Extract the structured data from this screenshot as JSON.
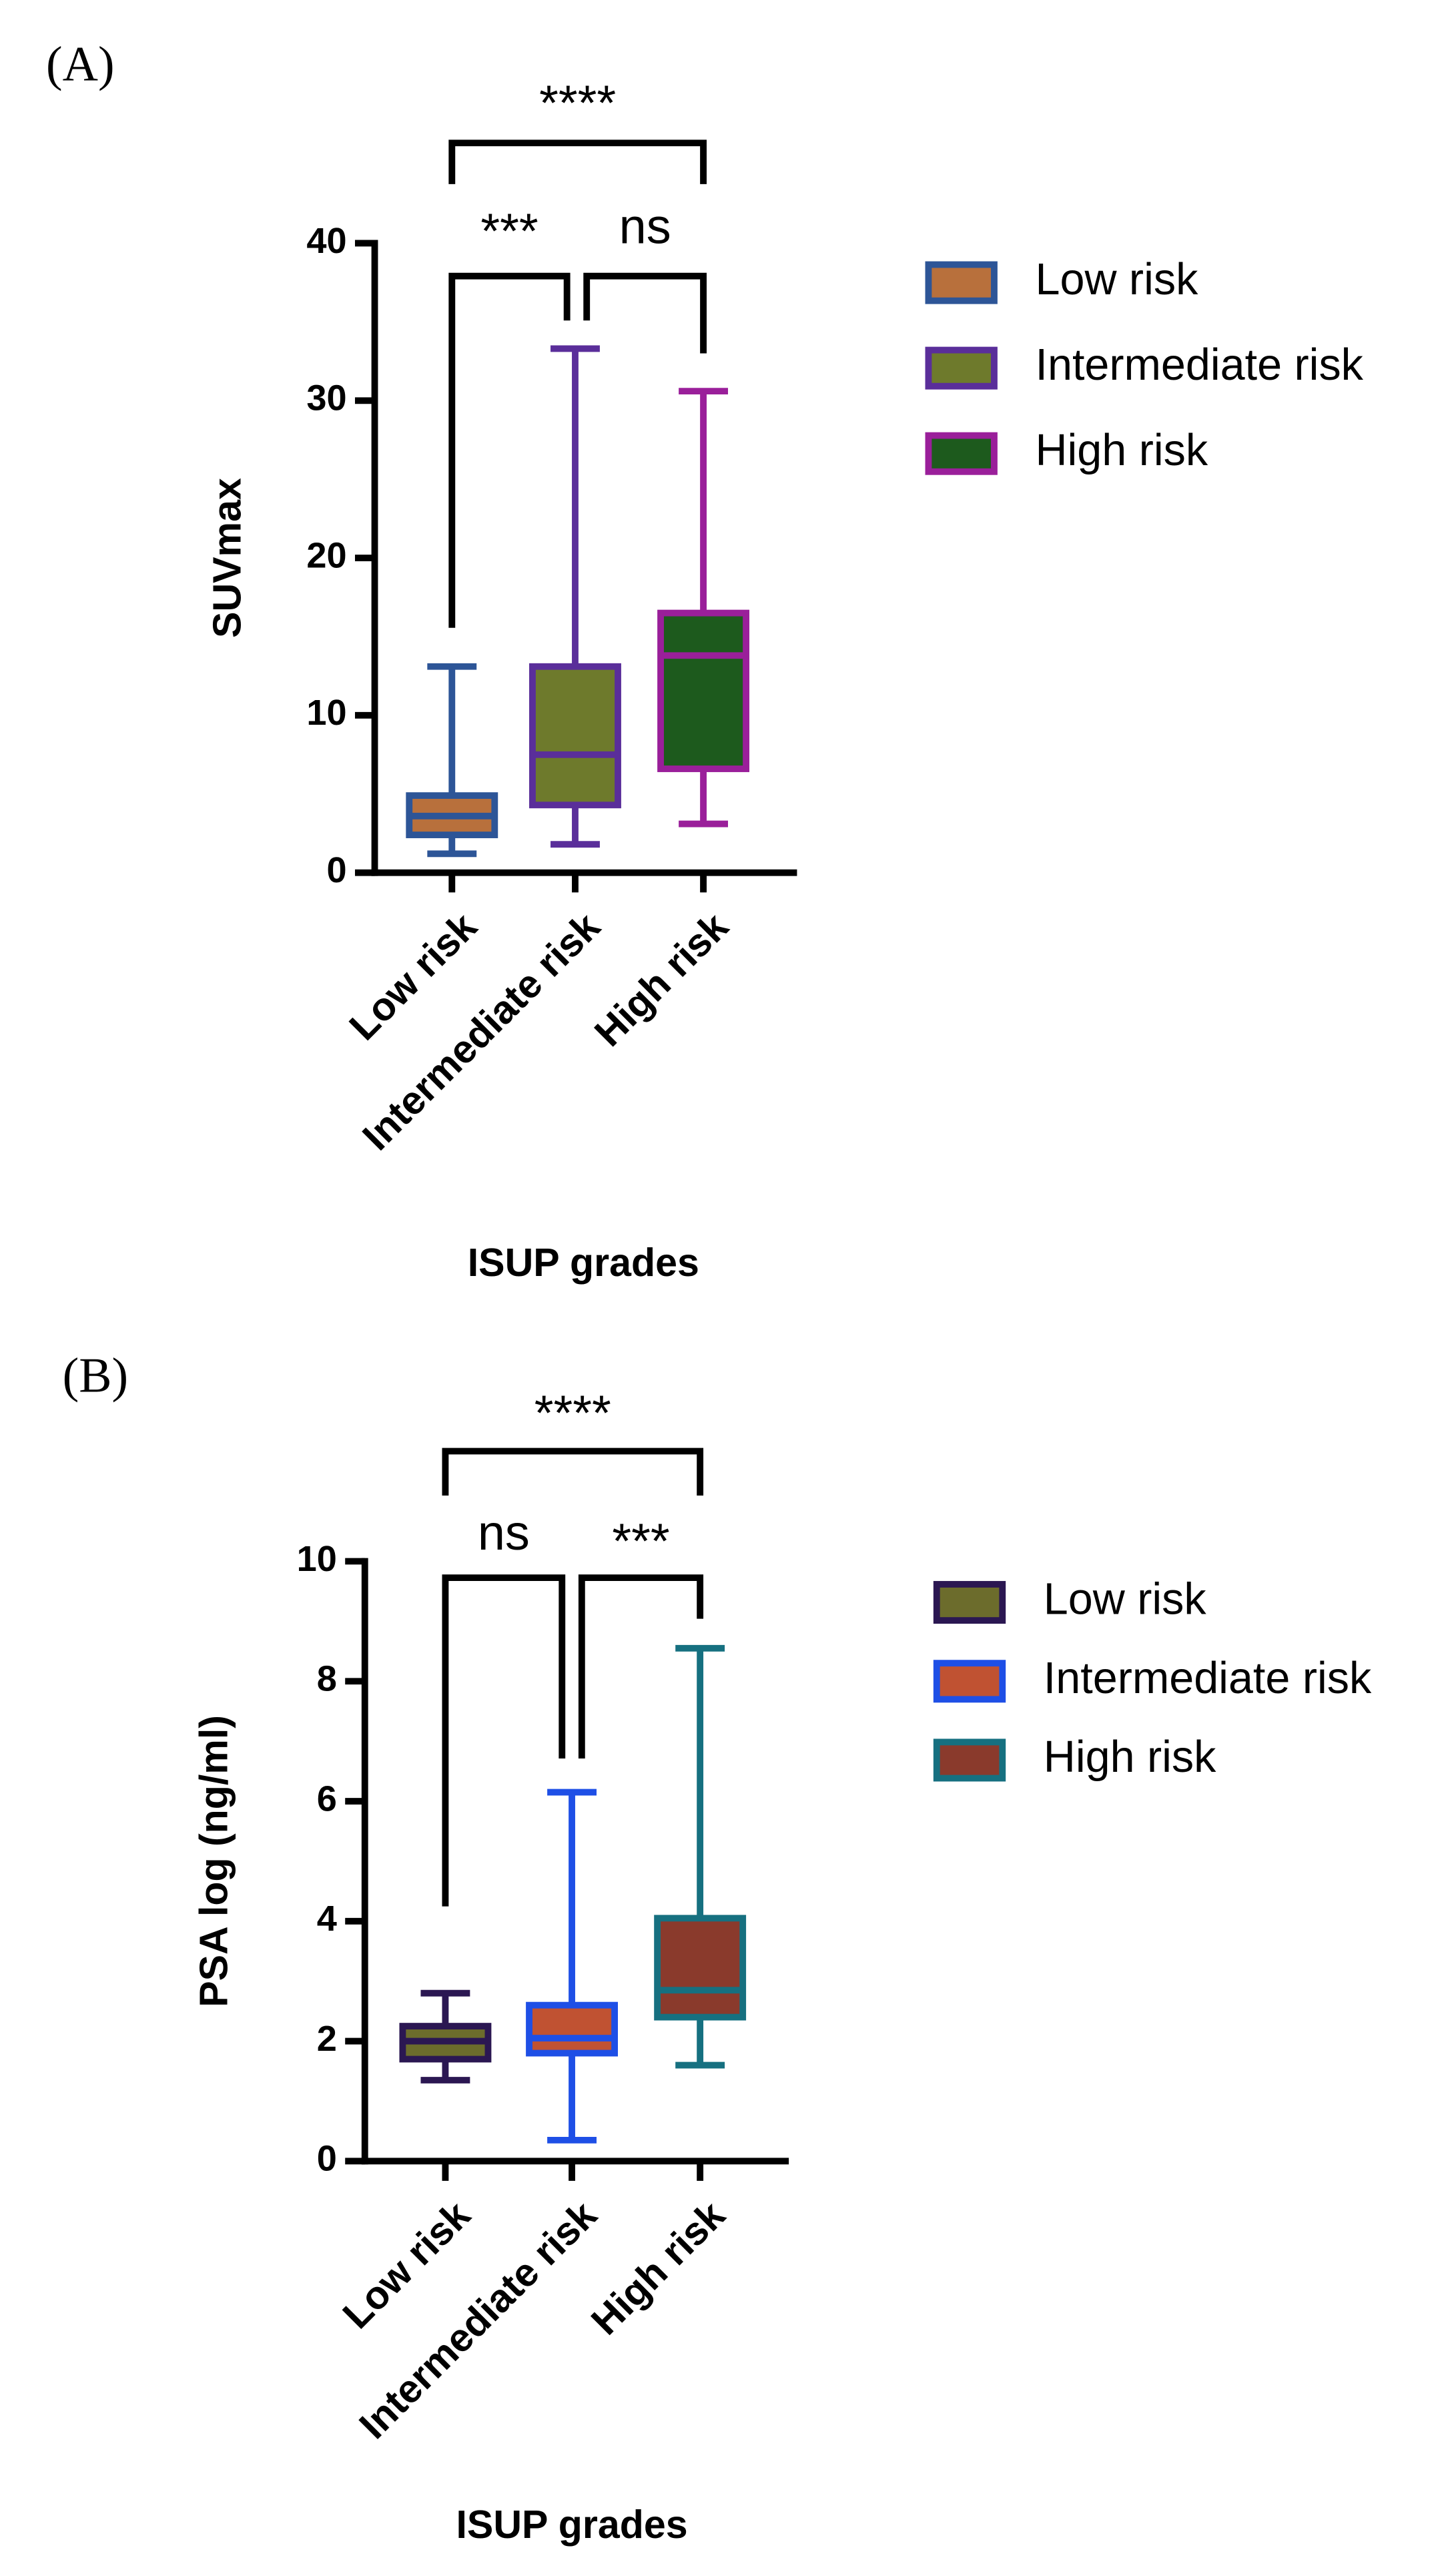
{
  "chart_data": [
    {
      "type": "box",
      "panel": "(A)",
      "y_label": "SUVmax",
      "x_label": "ISUP grades",
      "categories": [
        "Low risk",
        "Intermediate risk",
        "High risk"
      ],
      "ylim": [
        0,
        40
      ],
      "yticks": [
        0,
        10,
        20,
        30,
        40
      ],
      "series": [
        {
          "name": "Low risk",
          "color": "#2d5597",
          "fill": "#b8703c",
          "min": 1.2,
          "q1": 2.4,
          "median": 3.6,
          "q3": 4.9,
          "max": 13.1
        },
        {
          "name": "Intermediate risk",
          "color": "#5a2e9a",
          "fill": "#6e7a2c",
          "min": 1.8,
          "q1": 4.3,
          "median": 7.5,
          "q3": 13.1,
          "max": 33.3
        },
        {
          "name": "High risk",
          "color": "#9a1f9a",
          "fill": "#1d5a1d",
          "min": 3.1,
          "q1": 6.6,
          "median": 13.8,
          "q3": 16.5,
          "max": 30.6
        }
      ],
      "annotations": [
        "****",
        "***",
        "ns"
      ]
    },
    {
      "type": "box",
      "panel": "(B)",
      "y_label": "PSA log  (ng/ml)",
      "x_label": "ISUP grades",
      "categories": [
        "Low risk",
        "Intermediate risk",
        "High risk"
      ],
      "ylim": [
        0,
        10
      ],
      "yticks": [
        0,
        2,
        4,
        6,
        8,
        10
      ],
      "series": [
        {
          "name": "Low risk",
          "color": "#2b1752",
          "fill": "#6c6c2c",
          "min": 1.35,
          "q1": 1.7,
          "median": 2.0,
          "q3": 2.25,
          "max": 2.8
        },
        {
          "name": "Intermediate risk",
          "color": "#1e4fe6",
          "fill": "#c05232",
          "min": 0.35,
          "q1": 1.8,
          "median": 2.05,
          "q3": 2.6,
          "max": 6.15
        },
        {
          "name": "High risk",
          "color": "#167080",
          "fill": "#8a3a2c",
          "min": 1.6,
          "q1": 2.4,
          "median": 2.85,
          "q3": 4.05,
          "max": 8.55
        }
      ],
      "annotations": [
        "****",
        "ns",
        "***"
      ]
    }
  ]
}
